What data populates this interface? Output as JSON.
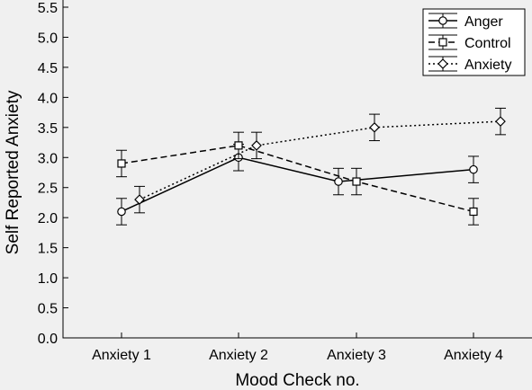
{
  "chart_data": {
    "type": "line",
    "title": "",
    "xlabel": "Mood Check no.",
    "ylabel": "Self Reported Anxiety",
    "categories": [
      "Anxiety 1",
      "Anxiety 2",
      "Anxiety 3",
      "Anxiety 4"
    ],
    "ylim": [
      0.0,
      5.5
    ],
    "yticks": [
      "0.0",
      "0.5",
      "1.0",
      "1.5",
      "2.0",
      "2.5",
      "3.0",
      "3.5",
      "4.0",
      "4.5",
      "5.0",
      "5.5"
    ],
    "grid": false,
    "legend_position": "top-right",
    "series": [
      {
        "name": "Anger",
        "line_style": "solid",
        "marker": "circle",
        "values": [
          2.1,
          3.0,
          2.6,
          2.8
        ],
        "error": [
          0.22,
          0.22,
          0.22,
          0.22
        ]
      },
      {
        "name": "Control",
        "line_style": "dashed",
        "marker": "square",
        "values": [
          2.9,
          3.2,
          2.6,
          2.1
        ],
        "error": [
          0.22,
          0.22,
          0.22,
          0.22
        ]
      },
      {
        "name": "Anxiety",
        "line_style": "dotted",
        "marker": "diamond",
        "values": [
          2.3,
          3.2,
          3.5,
          3.6
        ],
        "error": [
          0.22,
          0.22,
          0.22,
          0.22
        ]
      }
    ]
  }
}
